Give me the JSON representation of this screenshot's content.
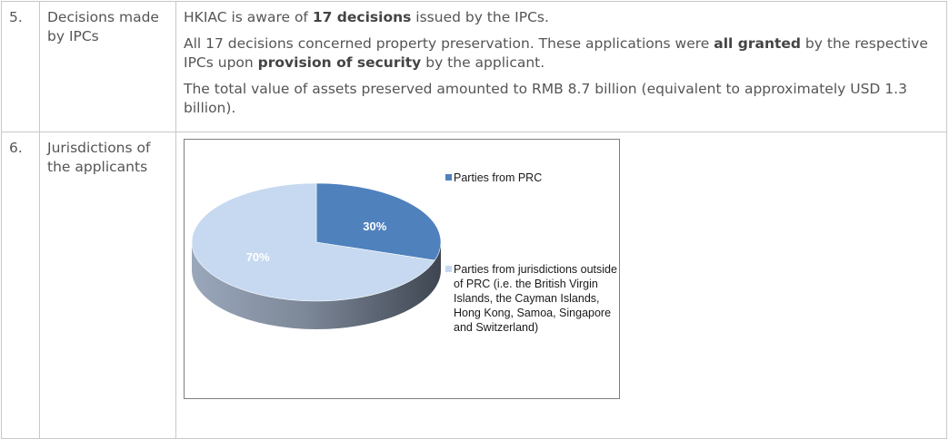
{
  "rows": [
    {
      "number": "5.",
      "label": "Decisions made by IPCs",
      "paragraphs": [
        [
          {
            "t": "HKIAC is aware of "
          },
          {
            "t": "17 decisions",
            "b": true
          },
          {
            "t": " issued by the IPCs."
          }
        ],
        [
          {
            "t": "All 17 decisions concerned property preservation. These applications were "
          },
          {
            "t": "all granted",
            "b": true
          },
          {
            "t": " by the respective IPCs upon "
          },
          {
            "t": "provision of security",
            "b": true
          },
          {
            "t": " by the applicant."
          }
        ],
        [
          {
            "t": "The total value of assets preserved amounted to RMB 8.7 billion (equivalent to approximately USD 1.3 billion)."
          }
        ]
      ]
    },
    {
      "number": "6.",
      "label": "Jurisdictions of the applicants"
    }
  ],
  "chart_data": {
    "type": "pie",
    "title": "",
    "slices": [
      {
        "name": "Parties from PRC",
        "value": 30,
        "label": "30%",
        "color": "#4f81bd"
      },
      {
        "name": "Parties from jurisdictions outside of PRC (i.e. the British Virgin Islands, the Cayman Islands, Hong Kong, Samoa, Singapore and Switzerland)",
        "value": 70,
        "label": "70%",
        "color": "#c6d9f0"
      }
    ],
    "legend_placement": "right",
    "style": "3d"
  }
}
